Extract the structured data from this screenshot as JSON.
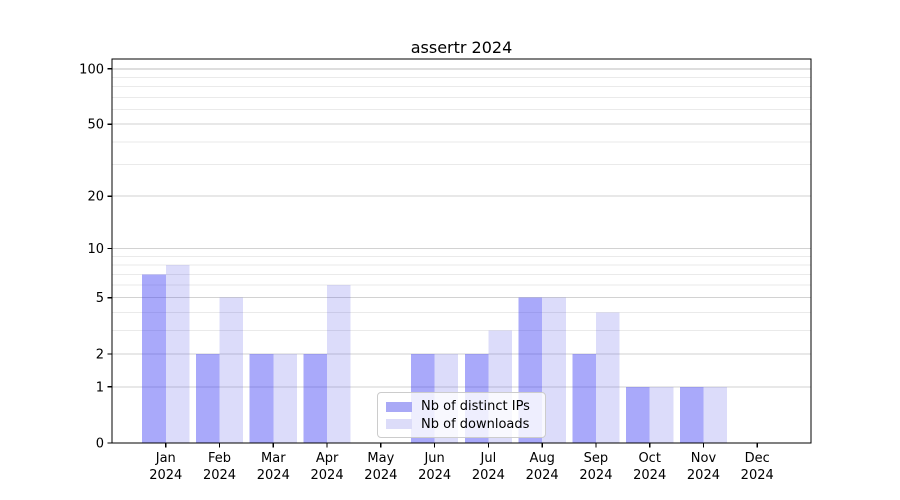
{
  "title": "assertr 2024",
  "chart_data": {
    "type": "bar",
    "title": "assertr 2024",
    "xlabel": "",
    "ylabel": "",
    "yscale": "log(1+x)",
    "ylim": [
      0,
      113
    ],
    "yticks": [
      0,
      1,
      2,
      5,
      10,
      20,
      50,
      100
    ],
    "categories": [
      "Jan 2024",
      "Feb 2024",
      "Mar 2024",
      "Apr 2024",
      "May 2024",
      "Jun 2024",
      "Jul 2024",
      "Aug 2024",
      "Sep 2024",
      "Oct 2024",
      "Nov 2024",
      "Dec 2024"
    ],
    "series": [
      {
        "name": "Nb of distinct IPs",
        "color": "#a9a9f6",
        "fill": "rgba(64,64,243,0.45)",
        "values": [
          7,
          2,
          2,
          2,
          0,
          2,
          2,
          5,
          2,
          1,
          1,
          0
        ]
      },
      {
        "name": "Nb of downloads",
        "color": "#dcdcf9",
        "fill": "rgba(61,61,230,0.18)",
        "values": [
          8,
          5,
          2,
          6,
          0,
          2,
          3,
          5,
          4,
          1,
          1,
          0
        ]
      }
    ],
    "grid": {
      "major": [
        1,
        2,
        5,
        10,
        20,
        50,
        100
      ],
      "minor": [
        3,
        4,
        6,
        7,
        8,
        9,
        30,
        40,
        60,
        70,
        80,
        90
      ],
      "major_color": "#d2d2d2",
      "minor_color": "#eaeaea",
      "top_line_color": "#bdbdbd"
    },
    "legend_position": "lower center"
  }
}
